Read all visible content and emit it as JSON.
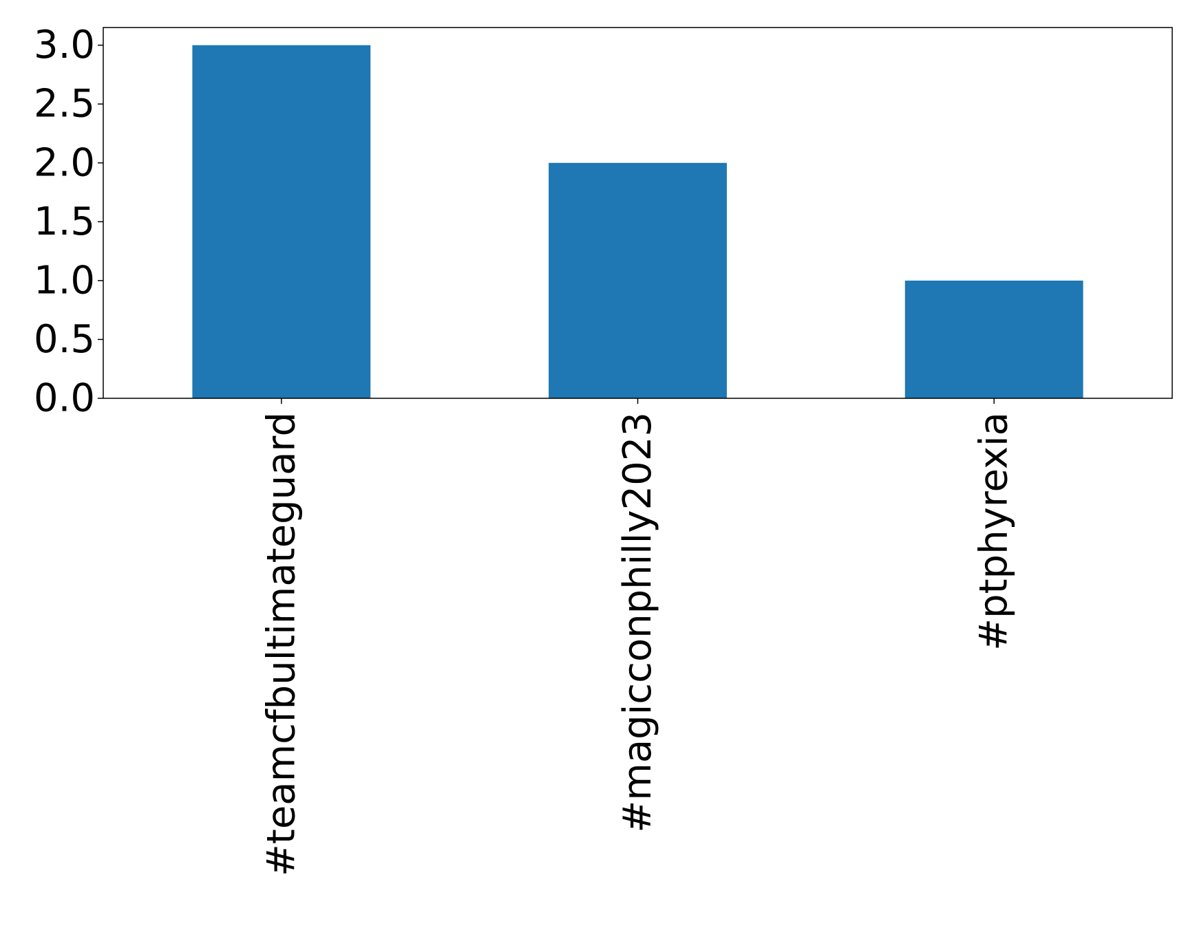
{
  "chart_data": {
    "type": "bar",
    "title": "",
    "xlabel": "",
    "ylabel": "",
    "categories": [
      "#teamcfbultimateguard",
      "#magicconphilly2023",
      "#ptphyrexia"
    ],
    "values": [
      3,
      2,
      1
    ],
    "ylim": [
      0,
      3.15
    ],
    "yticks": [
      0.0,
      0.5,
      1.0,
      1.5,
      2.0,
      2.5,
      3.0
    ],
    "ytick_labels": [
      "0.0",
      "0.5",
      "1.0",
      "1.5",
      "2.0",
      "2.5",
      "3.0"
    ],
    "bar_color": "#1f77b4",
    "grid": false,
    "legend": "none"
  }
}
